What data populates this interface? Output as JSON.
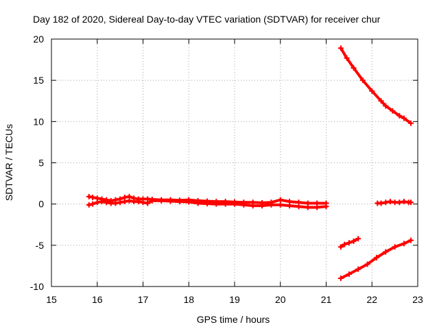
{
  "chart_data": {
    "type": "scatter",
    "title": "Day 182 of 2020, Sidereal Day-to-day VTEC variation (SDTVAR) for receiver chur",
    "xlabel": "GPS time / hours",
    "ylabel": "SDTVAR / TECUs",
    "xlim": [
      15,
      23
    ],
    "ylim": [
      -10,
      20
    ],
    "xticks": [
      15,
      16,
      17,
      18,
      19,
      20,
      21,
      22,
      23
    ],
    "yticks": [
      -10,
      -5,
      0,
      5,
      10,
      15,
      20
    ],
    "grid": true,
    "legend": "none",
    "marker": "plus",
    "color": "#ff0000",
    "series": [
      {
        "x": [
          15.82,
          15.9,
          16.0,
          16.1,
          16.2,
          16.3,
          16.4,
          16.5,
          16.6,
          16.7,
          16.8,
          16.9,
          17.0,
          17.1,
          17.2,
          17.4,
          17.6,
          17.8,
          18.0,
          18.2,
          18.4,
          18.6,
          18.8,
          19.0,
          19.2,
          19.4,
          19.6,
          19.8,
          20.0,
          20.2,
          20.4,
          20.6,
          20.8,
          21.0
        ],
        "y": [
          0.9,
          0.8,
          0.7,
          0.6,
          0.5,
          0.4,
          0.5,
          0.6,
          0.8,
          0.9,
          0.7,
          0.6,
          0.6,
          0.6,
          0.55,
          0.5,
          0.5,
          0.45,
          0.5,
          0.4,
          0.35,
          0.3,
          0.3,
          0.25,
          0.2,
          0.2,
          0.15,
          0.2,
          0.5,
          0.3,
          0.2,
          0.1,
          0.1,
          0.1
        ]
      },
      {
        "x": [
          15.82,
          15.9,
          16.0,
          16.1,
          16.2,
          16.3,
          16.4,
          16.5,
          16.6,
          16.7,
          16.8,
          16.9,
          17.0,
          17.1,
          17.2,
          17.4,
          17.6,
          17.8,
          18.0,
          18.2,
          18.4,
          18.6,
          18.8,
          19.0,
          19.2,
          19.4,
          19.6,
          19.8,
          20.0,
          20.2,
          20.4,
          20.6,
          20.8,
          21.0
        ],
        "y": [
          -0.1,
          0.0,
          0.2,
          0.3,
          0.2,
          0.1,
          0.1,
          0.2,
          0.3,
          0.4,
          0.3,
          0.3,
          0.2,
          0.1,
          0.4,
          0.4,
          0.35,
          0.3,
          0.25,
          0.1,
          0.05,
          0.0,
          0.0,
          0.0,
          -0.1,
          -0.2,
          -0.2,
          -0.1,
          -0.1,
          -0.2,
          -0.3,
          -0.4,
          -0.4,
          -0.3
        ]
      },
      {
        "x": [
          21.32,
          21.45,
          21.6,
          21.8,
          22.0,
          22.2,
          22.3,
          22.45,
          22.6,
          22.7,
          22.85
        ],
        "y": [
          18.9,
          17.7,
          16.5,
          15.0,
          13.7,
          12.5,
          11.9,
          11.3,
          10.7,
          10.4,
          9.8
        ]
      },
      {
        "x": [
          22.12,
          22.2,
          22.3,
          22.4,
          22.5,
          22.6,
          22.7,
          22.8,
          22.85
        ],
        "y": [
          0.1,
          0.1,
          0.2,
          0.3,
          0.2,
          0.2,
          0.3,
          0.2,
          0.2
        ]
      },
      {
        "x": [
          21.32,
          21.4,
          21.5,
          21.6,
          21.7
        ],
        "y": [
          -5.2,
          -4.9,
          -4.7,
          -4.5,
          -4.2
        ]
      },
      {
        "x": [
          21.32,
          21.5,
          21.7,
          21.9,
          22.1,
          22.3,
          22.5,
          22.7,
          22.85
        ],
        "y": [
          -9.0,
          -8.5,
          -7.9,
          -7.3,
          -6.5,
          -5.8,
          -5.2,
          -4.8,
          -4.4
        ]
      }
    ]
  }
}
